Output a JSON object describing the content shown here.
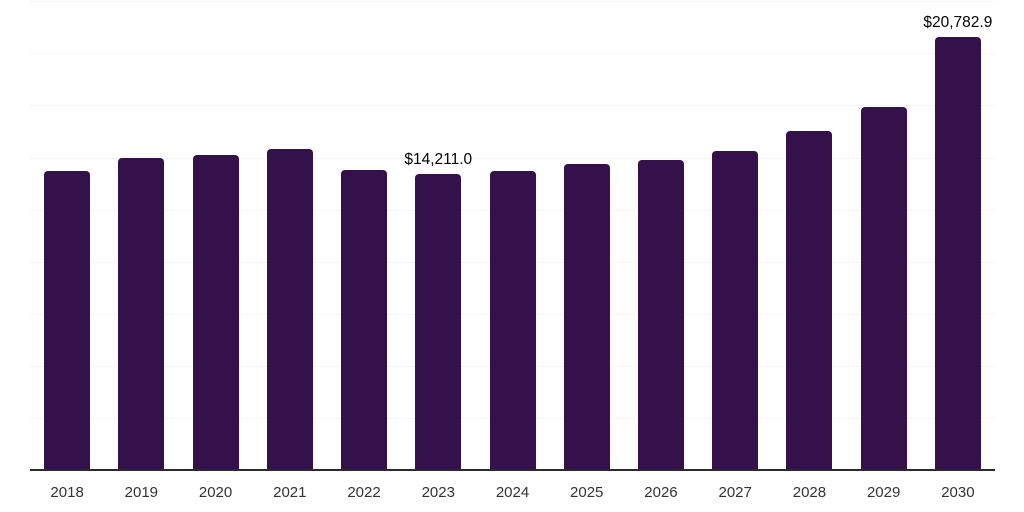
{
  "chart_data": {
    "type": "bar",
    "title": "",
    "xlabel": "",
    "ylabel": "",
    "categories": [
      "2018",
      "2019",
      "2020",
      "2021",
      "2022",
      "2023",
      "2024",
      "2025",
      "2026",
      "2027",
      "2028",
      "2029",
      "2030"
    ],
    "values": [
      14350,
      14980,
      15140,
      15420,
      14400,
      14211.0,
      14370,
      14680,
      14900,
      15310,
      16290,
      17440,
      20782.9
    ],
    "annotations": [
      {
        "category": "2023",
        "label": "$14,211.0"
      },
      {
        "category": "2030",
        "label": "$20,782.9"
      }
    ],
    "ylim": [
      0,
      22500
    ],
    "grid_step": 2500,
    "grid": "horizontal-only",
    "y_axis_labels_visible": false,
    "legend": "none",
    "colors": {
      "bar": "#35114b",
      "axis_line": "#2b2b2b",
      "gridline": "#f4f4f4",
      "tick_label": "#333333",
      "data_label": "#000000"
    }
  }
}
